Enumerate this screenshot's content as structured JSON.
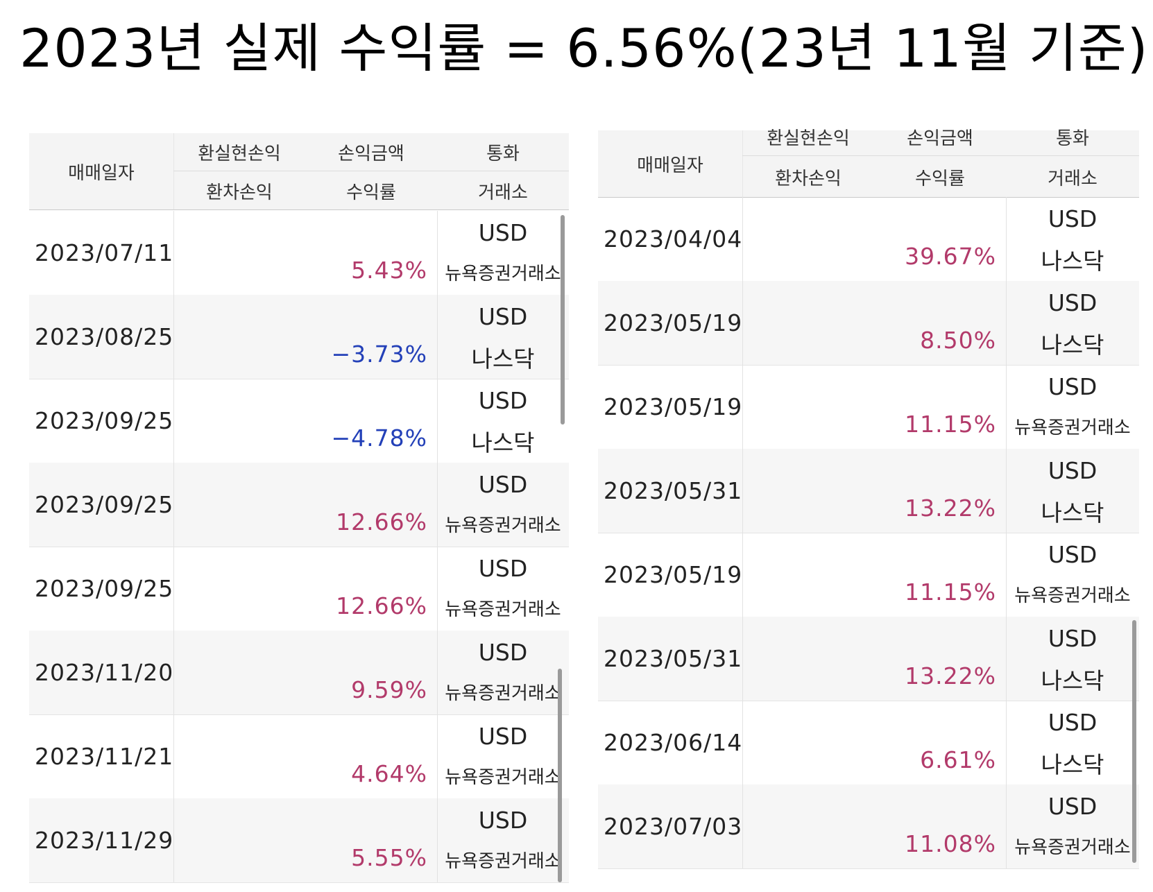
{
  "title": "2023년 실제 수익률 = 6.56%(23년 11월 기준)",
  "headers": {
    "date": "매매일자",
    "realized": "환실현손익",
    "amount": "손익금액",
    "currency": "통화",
    "fx": "환차손익",
    "rate": "수익률",
    "exchange": "거래소"
  },
  "left_rows": [
    {
      "date": "2023/07/11",
      "rate": "5.43%",
      "currency": "USD",
      "exchange": "뉴욕증권거래소",
      "sign": "pos"
    },
    {
      "date": "2023/08/25",
      "rate": "−3.73%",
      "currency": "USD",
      "exchange": "나스닥",
      "sign": "neg"
    },
    {
      "date": "2023/09/25",
      "rate": "−4.78%",
      "currency": "USD",
      "exchange": "나스닥",
      "sign": "neg"
    },
    {
      "date": "2023/09/25",
      "rate": "12.66%",
      "currency": "USD",
      "exchange": "뉴욕증권거래소",
      "sign": "pos"
    },
    {
      "date": "2023/09/25",
      "rate": "12.66%",
      "currency": "USD",
      "exchange": "뉴욕증권거래소",
      "sign": "pos"
    },
    {
      "date": "2023/11/20",
      "rate": "9.59%",
      "currency": "USD",
      "exchange": "뉴욕증권거래소",
      "sign": "pos"
    },
    {
      "date": "2023/11/21",
      "rate": "4.64%",
      "currency": "USD",
      "exchange": "뉴욕증권거래소",
      "sign": "pos"
    },
    {
      "date": "2023/11/29",
      "rate": "5.55%",
      "currency": "USD",
      "exchange": "뉴욕증권거래소",
      "sign": "pos"
    }
  ],
  "right_rows": [
    {
      "date": "2023/04/04",
      "rate": "39.67%",
      "currency": "USD",
      "exchange": "나스닥",
      "sign": "pos"
    },
    {
      "date": "2023/05/19",
      "rate": "8.50%",
      "currency": "USD",
      "exchange": "나스닥",
      "sign": "pos"
    },
    {
      "date": "2023/05/19",
      "rate": "11.15%",
      "currency": "USD",
      "exchange": "뉴욕증권거래소",
      "sign": "pos"
    },
    {
      "date": "2023/05/31",
      "rate": "13.22%",
      "currency": "USD",
      "exchange": "나스닥",
      "sign": "pos"
    },
    {
      "date": "2023/05/19",
      "rate": "11.15%",
      "currency": "USD",
      "exchange": "뉴욕증권거래소",
      "sign": "pos"
    },
    {
      "date": "2023/05/31",
      "rate": "13.22%",
      "currency": "USD",
      "exchange": "나스닥",
      "sign": "pos"
    },
    {
      "date": "2023/06/14",
      "rate": "6.61%",
      "currency": "USD",
      "exchange": "나스닥",
      "sign": "pos"
    },
    {
      "date": "2023/07/03",
      "rate": "11.08%",
      "currency": "USD",
      "exchange": "뉴욕증권거래소",
      "sign": "pos"
    }
  ]
}
